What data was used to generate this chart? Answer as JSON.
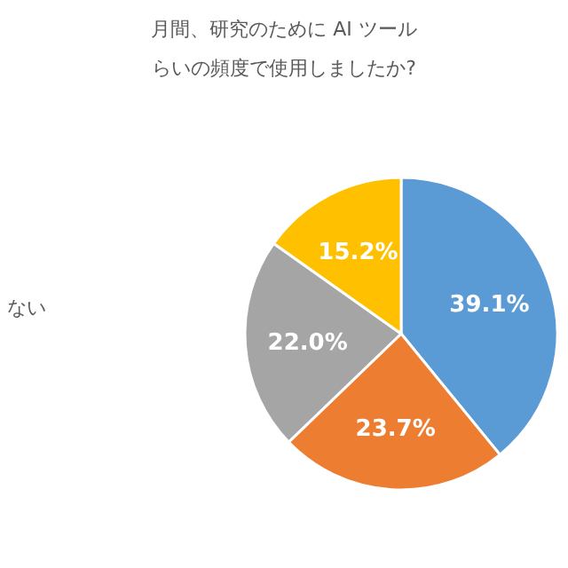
{
  "chart_data": {
    "type": "pie",
    "title": "月間、研究のために AI ツールらいの頻度で使用しましたか?",
    "categories": [
      null,
      null,
      null,
      null
    ],
    "values": [
      39.1,
      23.7,
      22.0,
      15.2
    ],
    "colors": [
      "#5b9bd5",
      "#ed7d31",
      "#a5a5a5",
      "#ffc000"
    ],
    "value_labels": [
      "39.1%",
      "23.7%",
      "22.0%",
      "15.2%"
    ],
    "annotations": [
      "ない"
    ]
  }
}
